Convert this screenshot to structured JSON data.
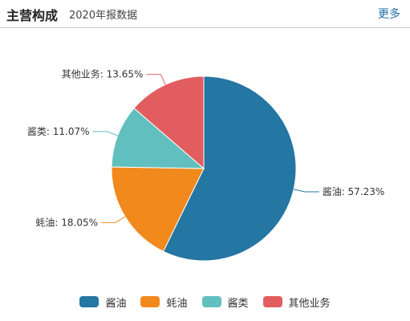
{
  "header": {
    "title": "主营构成",
    "subtitle": "2020年报数据",
    "more_label": "更多"
  },
  "chart_data": {
    "type": "pie",
    "slices": [
      {
        "name": "酱油",
        "value": 57.23,
        "label": "酱油: 57.23%",
        "color": "#2476a3"
      },
      {
        "name": "蚝油",
        "value": 18.05,
        "label": "蚝油: 18.05%",
        "color": "#f2891d"
      },
      {
        "name": "酱类",
        "value": 11.07,
        "label": "酱类: 11.07%",
        "color": "#61c0bf"
      },
      {
        "name": "其他业务",
        "value": 13.65,
        "label": "其他业务: 13.65%",
        "color": "#e25d5f"
      }
    ],
    "legend_position": "bottom"
  },
  "legend": {
    "items": [
      {
        "label": "酱油",
        "color": "#2476a3"
      },
      {
        "label": "蚝油",
        "color": "#f2891d"
      },
      {
        "label": "酱类",
        "color": "#61c0bf"
      },
      {
        "label": "其他业务",
        "color": "#e25d5f"
      }
    ]
  }
}
